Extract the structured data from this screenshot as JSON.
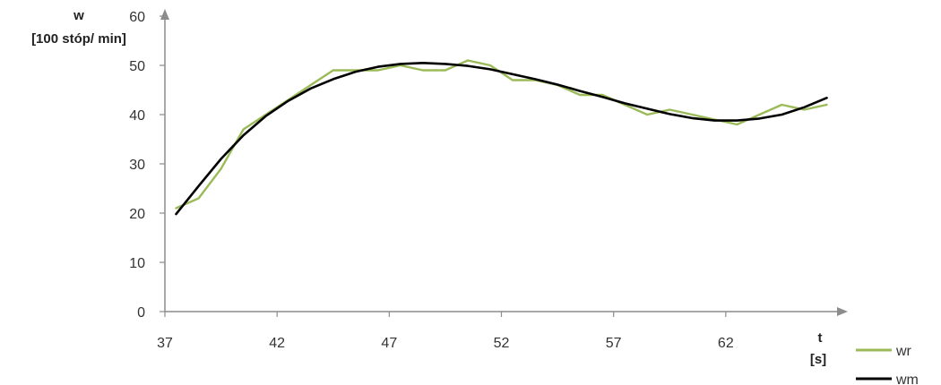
{
  "chart_data": {
    "type": "line",
    "title": "",
    "ylabel": "w",
    "ylabel_unit": "[100 stóp/ min]",
    "xlabel": "t",
    "xlabel_unit": "[s]",
    "xlim": [
      37,
      67
    ],
    "ylim": [
      0,
      60
    ],
    "xticks": [
      37,
      42,
      47,
      52,
      57,
      62
    ],
    "yticks": [
      0,
      10,
      20,
      30,
      40,
      50,
      60
    ],
    "grid": false,
    "legend_position": "bottom-right",
    "series": [
      {
        "name": "wr",
        "color": "#9BBB59",
        "x": [
          37.5,
          38.5,
          39.5,
          40.5,
          41.5,
          42.5,
          43.5,
          44.5,
          45.5,
          46.5,
          47.5,
          48.5,
          49.5,
          50.5,
          51.5,
          52.5,
          53.5,
          54.5,
          55.5,
          56.5,
          57.5,
          58.5,
          59.5,
          60.5,
          61.5,
          62.5,
          63.5,
          64.5,
          65.5,
          66.5
        ],
        "values": [
          21,
          23,
          29,
          37,
          40,
          43,
          46,
          49,
          49,
          49,
          50,
          49,
          49,
          51,
          50,
          47,
          47,
          46,
          44,
          44,
          42,
          40,
          41,
          40,
          39,
          38,
          40,
          42,
          41,
          42
        ]
      },
      {
        "name": "wm",
        "color": "#000000",
        "x": [
          37.5,
          38.5,
          39.5,
          40.5,
          41.5,
          42.5,
          43.5,
          44.5,
          45.5,
          46.5,
          47.5,
          48.5,
          49.5,
          50.5,
          51.5,
          52.5,
          53.5,
          54.5,
          55.5,
          56.5,
          57.5,
          58.5,
          59.5,
          60.5,
          61.5,
          62.5,
          63.5,
          64.5,
          65.5,
          66.5
        ],
        "values": [
          19.8,
          25.5,
          31.0,
          35.8,
          39.7,
          42.8,
          45.3,
          47.2,
          48.7,
          49.7,
          50.3,
          50.5,
          50.3,
          49.9,
          49.2,
          48.2,
          47.2,
          46.1,
          44.8,
          43.6,
          42.3,
          41.2,
          40.1,
          39.3,
          38.8,
          38.8,
          39.2,
          40.0,
          41.5,
          43.4
        ]
      }
    ]
  }
}
